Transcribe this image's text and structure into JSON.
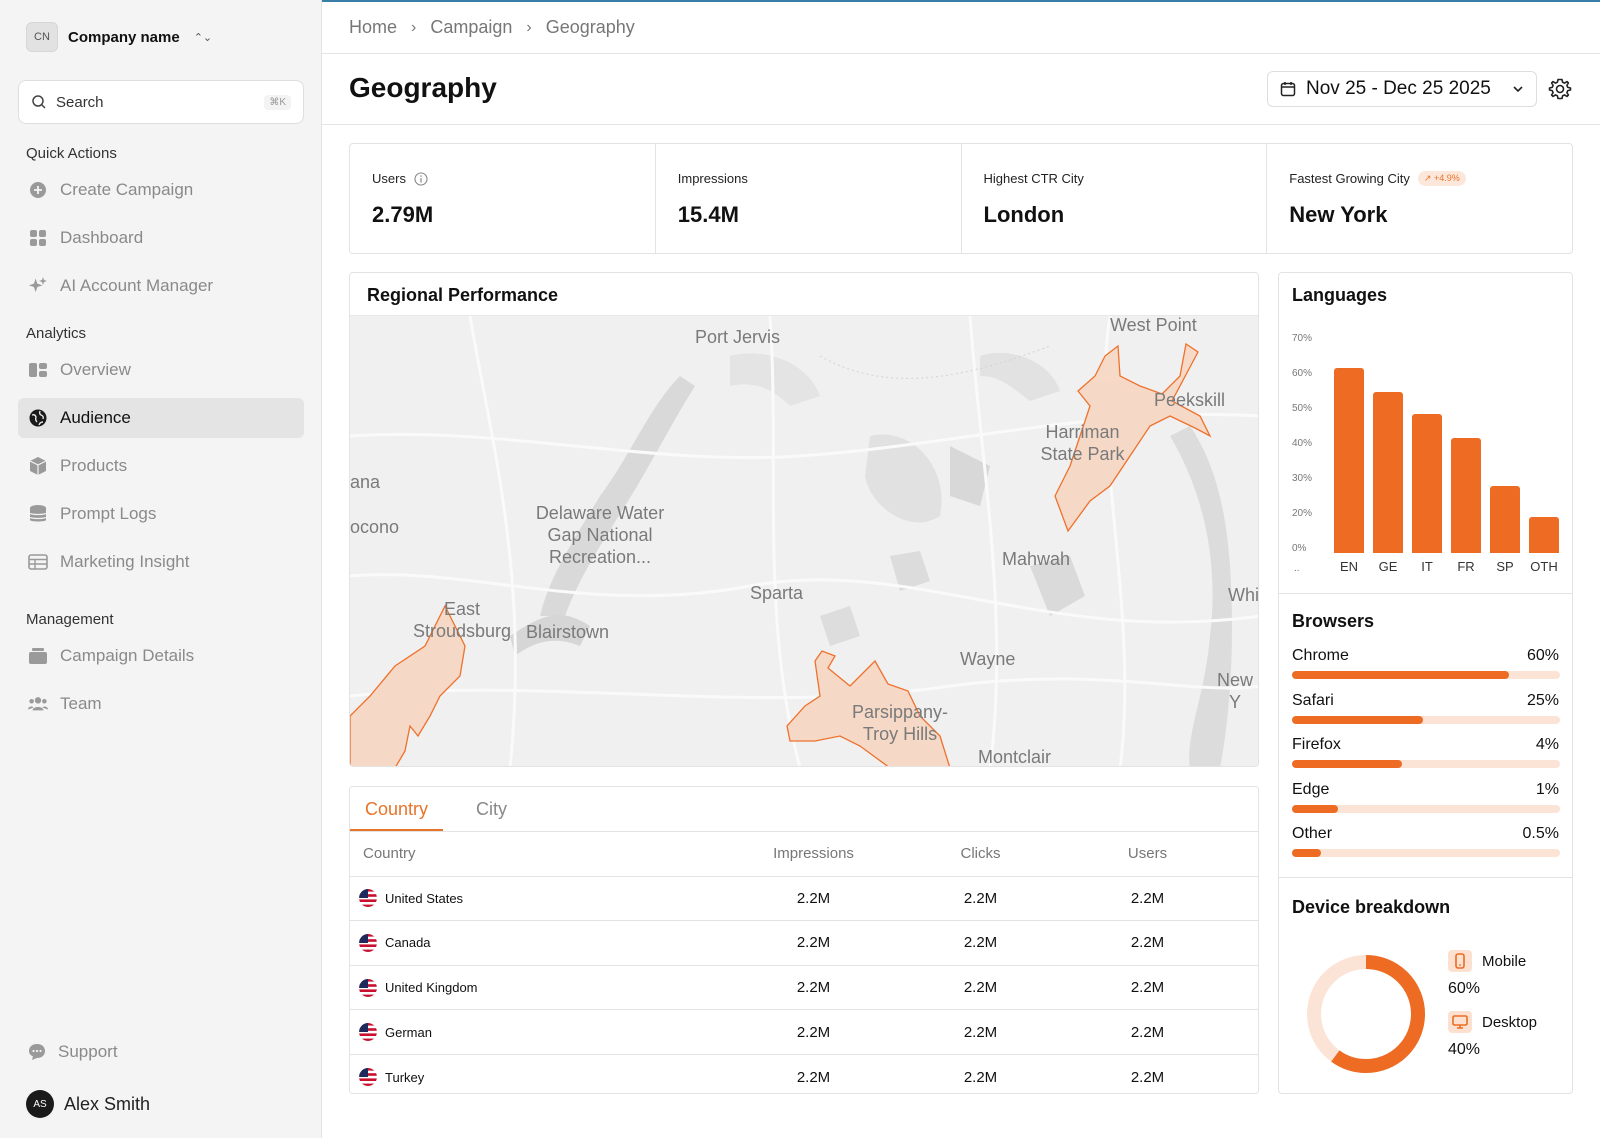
{
  "sidebar": {
    "company_initials": "CN",
    "company_name": "Company name",
    "search_label": "Search",
    "search_shortcut": "⌘K",
    "quick_actions_title": "Quick Actions",
    "analytics_title": "Analytics",
    "management_title": "Management",
    "items": [
      {
        "label": "Create Campaign",
        "icon": "plus-circle-icon"
      },
      {
        "label": "Dashboard",
        "icon": "grid-icon"
      },
      {
        "label": "AI Account Manager",
        "icon": "sparkle-icon"
      },
      {
        "label": "Overview",
        "icon": "layout-icon"
      },
      {
        "label": "Audience",
        "icon": "globe-icon",
        "active": true
      },
      {
        "label": "Products",
        "icon": "box-icon"
      },
      {
        "label": "Prompt Logs",
        "icon": "database-icon"
      },
      {
        "label": "Marketing Insight",
        "icon": "table-icon"
      },
      {
        "label": "Campaign Details",
        "icon": "briefcase-icon"
      },
      {
        "label": "Team",
        "icon": "team-icon"
      }
    ],
    "support_label": "Support",
    "user_initials": "AS",
    "user_name": "Alex Smith"
  },
  "breadcrumb": [
    "Home",
    "Campaign",
    "Geography"
  ],
  "page_title": "Geography",
  "date_range": "Nov 25 - Dec 25  2025",
  "kpis": [
    {
      "label": "Users",
      "value": "2.79M"
    },
    {
      "label": "Impressions",
      "value": "15.4M"
    },
    {
      "label": "Highest CTR City",
      "value": "London"
    },
    {
      "label": "Fastest Growing City",
      "badge": "+4.9%",
      "value": "New York"
    }
  ],
  "map": {
    "title": "Regional Performance",
    "labels": [
      "Port Jervis",
      "West Point",
      "Peekskill",
      "Harriman State Park",
      "ana",
      "ocono",
      "Delaware Water Gap National Recreation...",
      "Mahwah",
      "Sparta",
      "Whi",
      "East Stroudsburg",
      "Blairstown",
      "Wayne",
      "New Y",
      "Parsippany-Troy Hills",
      "Montclair"
    ]
  },
  "table": {
    "tabs": [
      "Country",
      "City"
    ],
    "active_tab": "Country",
    "columns": [
      "Country",
      "Impressions",
      "Clicks",
      "Users"
    ],
    "rows": [
      {
        "country": "United States",
        "impressions": "2.2M",
        "clicks": "2.2M",
        "users": "2.2M"
      },
      {
        "country": "Canada",
        "impressions": "2.2M",
        "clicks": "2.2M",
        "users": "2.2M"
      },
      {
        "country": "United Kingdom",
        "impressions": "2.2M",
        "clicks": "2.2M",
        "users": "2.2M"
      },
      {
        "country": "German",
        "impressions": "2.2M",
        "clicks": "2.2M",
        "users": "2.2M"
      },
      {
        "country": "Turkey",
        "impressions": "2.2M",
        "clicks": "2.2M",
        "users": "2.2M"
      }
    ]
  },
  "languages": {
    "title": "Languages",
    "y_ticks": [
      "70%",
      "60%",
      "50%",
      "40%",
      "30%",
      "20%",
      "0%"
    ],
    "categories": [
      "EN",
      "GE",
      "IT",
      "FR",
      "SP",
      "OTH"
    ],
    "values": [
      61,
      53,
      46,
      38,
      22,
      12
    ]
  },
  "browsers": {
    "title": "Browsers",
    "items": [
      {
        "name": "Chrome",
        "value": "60%",
        "fill": 0.81
      },
      {
        "name": "Safari",
        "value": "25%",
        "fill": 0.49
      },
      {
        "name": "Firefox",
        "value": "4%",
        "fill": 0.41
      },
      {
        "name": "Edge",
        "value": "1%",
        "fill": 0.17
      },
      {
        "name": "Other",
        "value": "0.5%",
        "fill": 0.11
      }
    ]
  },
  "devices": {
    "title": "Device breakdown",
    "items": [
      {
        "name": "Mobile",
        "value": "60%",
        "icon": "phone-icon"
      },
      {
        "name": "Desktop",
        "value": "40%",
        "icon": "monitor-icon"
      }
    ]
  },
  "colors": {
    "accent": "#ee6b23",
    "accent_light": "#fbe4d6"
  }
}
